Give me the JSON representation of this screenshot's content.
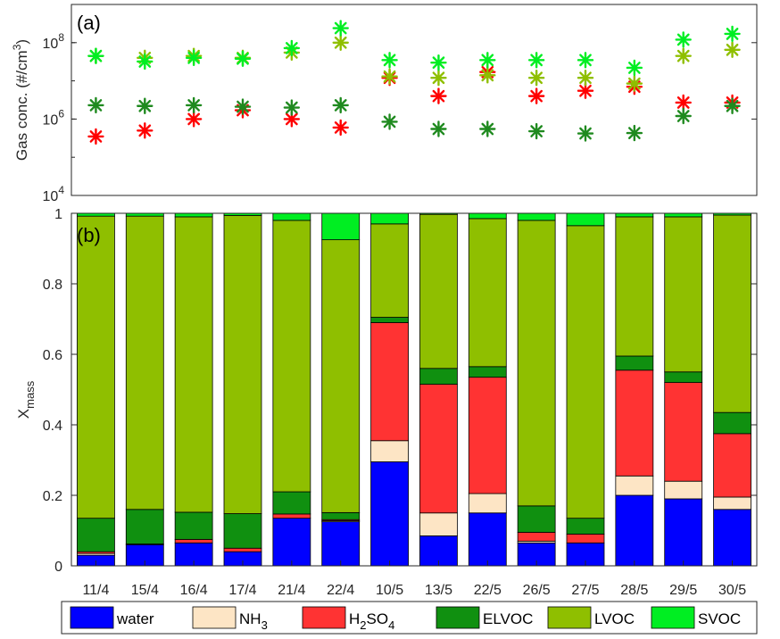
{
  "chart_data": [
    {
      "type": "scatter",
      "panel_label": "(a)",
      "ylabel": "Gas conc. (#/cm",
      "ylabel_sup": "3",
      "ylabel_close": ")",
      "yscale": "log",
      "ylim": [
        10000,
        1000000000
      ],
      "yticks": [
        {
          "base": "10",
          "exp": "4",
          "value": 10000
        },
        {
          "base": "10",
          "exp": "6",
          "value": 1000000
        },
        {
          "base": "10",
          "exp": "8",
          "value": 100000000
        }
      ],
      "categories": [
        "11/4",
        "15/4",
        "16/4",
        "17/4",
        "21/4",
        "22/4",
        "10/5",
        "13/5",
        "22/5",
        "26/5",
        "27/5",
        "28/5",
        "29/5",
        "30/5"
      ],
      "series": [
        {
          "key": "H2SO4",
          "color": "#ff0000",
          "values": [
            350000,
            500000,
            1000000,
            1700000,
            1000000,
            600000,
            12000000,
            4000000,
            17000000,
            4000000,
            5500000,
            7000000,
            2700000,
            2700000
          ]
        },
        {
          "key": "ELVOC",
          "color": "#1f8a1f",
          "values": [
            2300000,
            2200000,
            2300000,
            2100000,
            2000000,
            2300000,
            850000,
            550000,
            550000,
            480000,
            420000,
            430000,
            1200000,
            2200000
          ]
        },
        {
          "key": "LVOC",
          "color": "#8fbf00",
          "values": [
            45000000,
            40000000,
            45000000,
            40000000,
            55000000,
            100000000,
            13000000,
            12000000,
            14000000,
            12000000,
            12000000,
            8500000,
            45000000,
            65000000
          ]
        },
        {
          "key": "SVOC",
          "color": "#00ee22",
          "values": [
            45000000,
            32000000,
            40000000,
            38000000,
            72000000,
            240000000,
            35000000,
            30000000,
            35000000,
            35000000,
            35000000,
            22000000,
            120000000,
            170000000
          ]
        }
      ]
    },
    {
      "type": "bar",
      "stacked": true,
      "panel_label": "(b)",
      "ylabel": "X",
      "ylabel_sub": "mass",
      "ylim": [
        0,
        1
      ],
      "yticks": [
        "0",
        "0.2",
        "0.4",
        "0.6",
        "0.8",
        "1"
      ],
      "categories": [
        "11/4",
        "15/4",
        "16/4",
        "17/4",
        "21/4",
        "22/4",
        "10/5",
        "13/5",
        "22/5",
        "26/5",
        "27/5",
        "28/5",
        "29/5",
        "30/5"
      ],
      "series": [
        {
          "key": "water",
          "color": "#0000ff",
          "values": [
            0.03,
            0.06,
            0.065,
            0.04,
            0.135,
            0.125,
            0.295,
            0.085,
            0.15,
            0.065,
            0.065,
            0.2,
            0.19,
            0.16
          ]
        },
        {
          "key": "NH3",
          "color": "#fde5c5",
          "values": [
            0.005,
            0.0,
            0.0,
            0.0,
            0.0,
            0.003,
            0.06,
            0.065,
            0.055,
            0.005,
            0.0,
            0.055,
            0.05,
            0.035
          ]
        },
        {
          "key": "H2SO4",
          "color": "#ff3333",
          "values": [
            0.005,
            0.002,
            0.01,
            0.01,
            0.012,
            0.003,
            0.335,
            0.365,
            0.33,
            0.025,
            0.025,
            0.3,
            0.28,
            0.18
          ]
        },
        {
          "key": "ELVOC",
          "color": "#109010",
          "values": [
            0.095,
            0.098,
            0.077,
            0.098,
            0.063,
            0.02,
            0.015,
            0.045,
            0.03,
            0.075,
            0.045,
            0.04,
            0.03,
            0.06
          ]
        },
        {
          "key": "LVOC",
          "color": "#8fbf00",
          "values": [
            0.857,
            0.832,
            0.838,
            0.846,
            0.77,
            0.774,
            0.265,
            0.437,
            0.42,
            0.81,
            0.83,
            0.395,
            0.44,
            0.56
          ]
        },
        {
          "key": "SVOC",
          "color": "#00ee22",
          "values": [
            0.008,
            0.008,
            0.01,
            0.006,
            0.02,
            0.075,
            0.03,
            0.003,
            0.015,
            0.02,
            0.035,
            0.01,
            0.01,
            0.005
          ]
        }
      ]
    }
  ],
  "legend": [
    {
      "key": "water",
      "color": "#0000ff",
      "label": "water",
      "sub": "",
      "sub2": "",
      "rest": ""
    },
    {
      "key": "NH3",
      "color": "#fde5c5",
      "label": "NH",
      "sub": "3",
      "sub2": "",
      "rest": ""
    },
    {
      "key": "H2SO4",
      "color": "#ff3333",
      "label": "H",
      "sub": "2",
      "mid": "SO",
      "sub2": "4"
    },
    {
      "key": "ELVOC",
      "color": "#109010",
      "label": "ELVOC",
      "sub": "",
      "sub2": ""
    },
    {
      "key": "LVOC",
      "color": "#8fbf00",
      "label": "LVOC",
      "sub": "",
      "sub2": ""
    },
    {
      "key": "SVOC",
      "color": "#00ee22",
      "label": "SVOC",
      "sub": "",
      "sub2": ""
    }
  ]
}
